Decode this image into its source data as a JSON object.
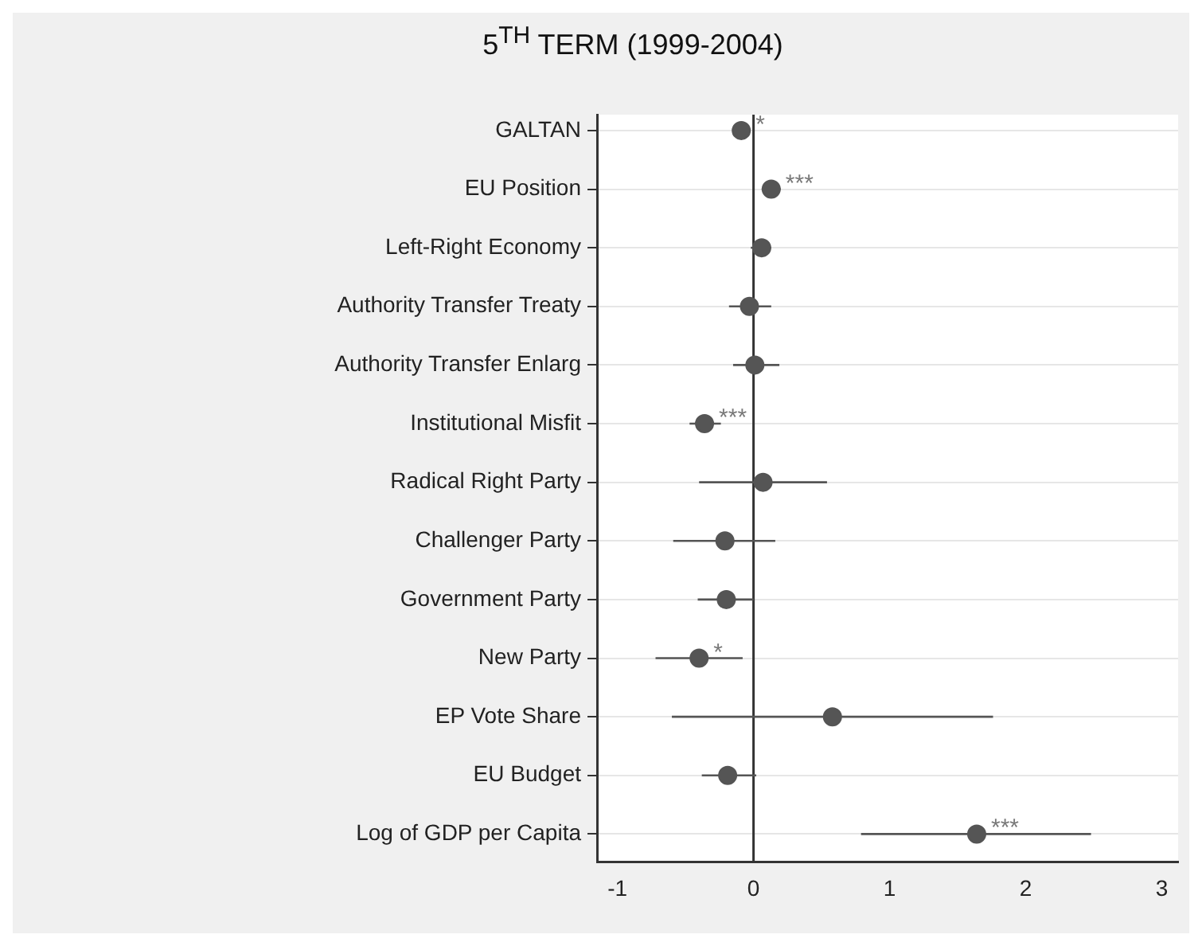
{
  "chart_data": {
    "type": "scatter",
    "orientation": "horizontal",
    "title": "5$^{TH}$ TERM (1999-2004)",
    "categories": [
      "GALTAN",
      "EU Position",
      "Left-Right Economy",
      "Authority Transfer Treaty",
      "Authority Transfer Enlarg",
      "Institutional Misfit",
      "Radical Right Party",
      "Challenger Party",
      "Government Party",
      "New Party",
      "EP Vote Share",
      "EU Budget",
      "Log of GDP per Capita"
    ],
    "values": [
      -0.09,
      0.13,
      0.06,
      -0.03,
      0.01,
      -0.36,
      0.07,
      -0.21,
      -0.2,
      -0.4,
      0.58,
      -0.19,
      1.64
    ],
    "errors": [
      [
        -0.15,
        -0.03
      ],
      [
        0.06,
        0.2
      ],
      [
        -0.02,
        0.13
      ],
      [
        -0.18,
        0.13
      ],
      [
        -0.15,
        0.19
      ],
      [
        -0.47,
        -0.24
      ],
      [
        -0.4,
        0.54
      ],
      [
        -0.59,
        0.16
      ],
      [
        -0.41,
        0.0
      ],
      [
        -0.72,
        -0.08
      ],
      [
        -0.6,
        1.76
      ],
      [
        -0.38,
        0.02
      ],
      [
        0.79,
        2.48
      ]
    ],
    "color": "#555555",
    "marker": "circle",
    "xlim": [
      -1.15,
      3.12
    ],
    "xticks": [
      -1,
      0,
      1,
      2,
      3
    ],
    "grid": "y",
    "ref_lines": [
      {
        "axis": "x",
        "value": 0,
        "color": "#333333"
      }
    ],
    "annotations": [
      {
        "text": "*",
        "x": -0.09,
        "y": "GALTAN"
      },
      {
        "text": "***",
        "x": 0.13,
        "y": "EU Position"
      },
      {
        "text": "***",
        "x": -0.36,
        "y": "Institutional Misfit"
      },
      {
        "text": "*",
        "x": -0.4,
        "y": "New Party"
      },
      {
        "text": "***",
        "x": 1.64,
        "y": "Log of GDP per Capita"
      }
    ]
  }
}
